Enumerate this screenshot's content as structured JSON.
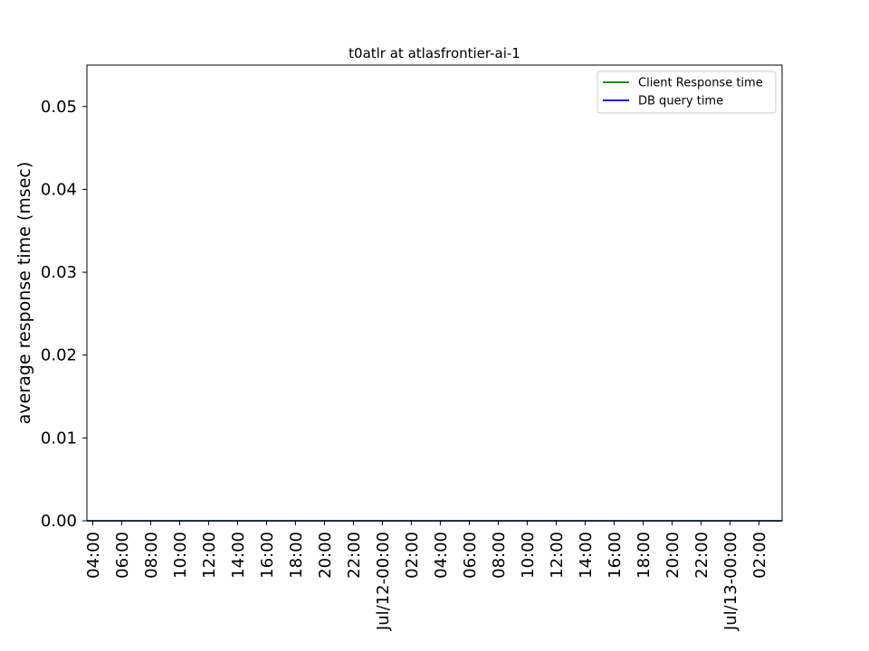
{
  "chart_data": {
    "type": "line",
    "title": "t0atlr at atlasfrontier-ai-1",
    "xlabel": "",
    "ylabel": "average response time (msec)",
    "ylim": [
      0,
      0.055
    ],
    "y_ticks": [
      0.0,
      0.01,
      0.02,
      0.03,
      0.04,
      0.05
    ],
    "y_tick_labels": [
      "0.00",
      "0.01",
      "0.02",
      "0.03",
      "0.04",
      "0.05"
    ],
    "x_tick_labels": [
      "04:00",
      "06:00",
      "08:00",
      "10:00",
      "12:00",
      "14:00",
      "16:00",
      "18:00",
      "20:00",
      "22:00",
      "Jul/12-00:00",
      "02:00",
      "04:00",
      "06:00",
      "08:00",
      "10:00",
      "12:00",
      "14:00",
      "16:00",
      "18:00",
      "20:00",
      "22:00",
      "Jul/13-00:00",
      "02:00"
    ],
    "x_range_hours": [
      3.6,
      51.6
    ],
    "x_tick_hours": [
      4,
      6,
      8,
      10,
      12,
      14,
      16,
      18,
      20,
      22,
      24,
      26,
      28,
      30,
      32,
      34,
      36,
      38,
      40,
      42,
      44,
      46,
      48,
      50
    ],
    "grid": false,
    "legend_position": "top-right",
    "series": [
      {
        "name": "Client Response time",
        "color": "#008000",
        "x_hours": [
          3.6,
          51.6
        ],
        "values": [
          0,
          0
        ]
      },
      {
        "name": "DB query time",
        "color": "#0000bf",
        "x_hours": [
          3.6,
          51.6
        ],
        "values": [
          0,
          0
        ]
      }
    ]
  }
}
